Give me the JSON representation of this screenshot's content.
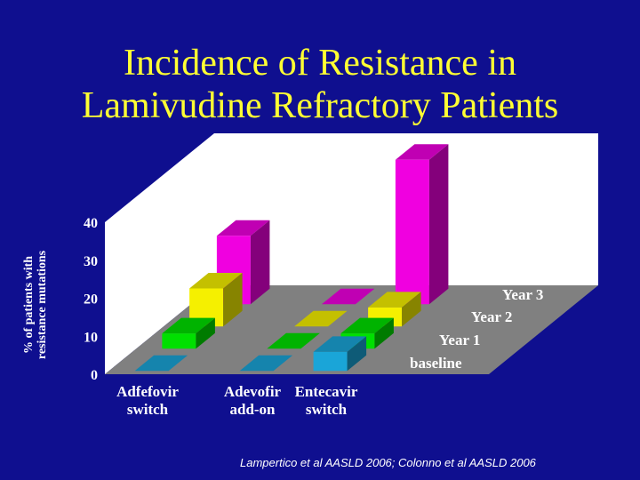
{
  "slide": {
    "title_line1": "Incidence of Resistance in",
    "title_line2": "Lamivudine Refractory Patients",
    "ylabel_line1": "% of patients with",
    "ylabel_line2": "resistance mutations",
    "source": "Lampertico et al AASLD 2006; Colonno et al AASLD 2006"
  },
  "colors": {
    "background": "#0f0f8f",
    "title": "#ffff33",
    "wall": "#ffffff",
    "floor": "#808080",
    "baseline": "#1aa5d8",
    "year1": "#00e000",
    "year2": "#f5f000",
    "year3": "#f000e0"
  },
  "chart_data": {
    "type": "bar",
    "subtype": "3d-grouped",
    "title": "Incidence of Resistance in Lamivudine Refractory Patients",
    "ylabel": "% of patients with resistance mutations",
    "categories": [
      "Adfefovir switch",
      "Adevofir add-on",
      "Entecavir switch"
    ],
    "category_lines": [
      [
        "Adfefovir",
        "switch"
      ],
      [
        "Adevofir",
        "add-on"
      ],
      [
        "Entecavir",
        "switch"
      ]
    ],
    "series": [
      {
        "name": "baseline",
        "values": [
          0,
          0,
          5
        ]
      },
      {
        "name": "Year 1",
        "values": [
          4,
          0,
          4
        ]
      },
      {
        "name": "Year 2",
        "values": [
          10,
          0,
          5
        ]
      },
      {
        "name": "Year 3",
        "values": [
          18,
          0,
          38
        ]
      }
    ],
    "ylim": [
      0,
      40
    ],
    "yticks": [
      0,
      10,
      20,
      30,
      40
    ],
    "grid": false,
    "legend": "series labels along depth axis, right"
  }
}
